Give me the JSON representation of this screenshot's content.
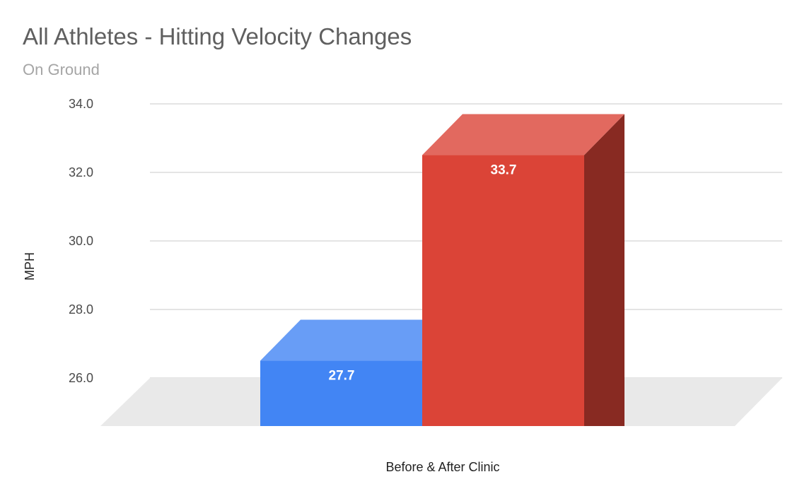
{
  "chart_data": {
    "type": "bar",
    "title": "All Athletes - Hitting Velocity Changes",
    "subtitle": "On Ground",
    "xlabel": "Before & After Clinic",
    "ylabel": "MPH",
    "ylim": [
      26.0,
      34.0
    ],
    "yticks": [
      "34.0",
      "32.0",
      "30.0",
      "28.0",
      "26.0"
    ],
    "grid": true,
    "style": "3d",
    "categories": [
      "Before & After Clinic"
    ],
    "series": [
      {
        "values": [
          27.7
        ],
        "label": "27.7",
        "color": "#4285f4"
      },
      {
        "values": [
          33.7
        ],
        "label": "33.7",
        "color": "#db4437"
      }
    ]
  }
}
